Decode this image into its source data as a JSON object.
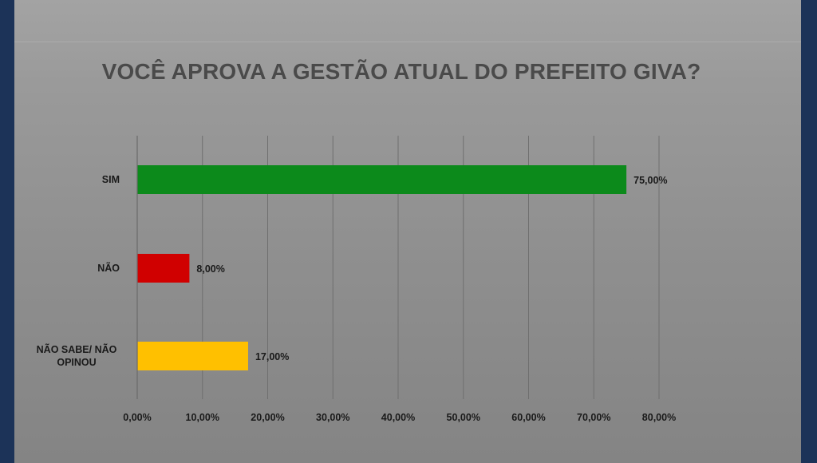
{
  "chart_data": {
    "type": "bar",
    "orientation": "horizontal",
    "title": "VOCÊ APROVA A GESTÃO ATUAL DO PREFEITO GIVA?",
    "categories": [
      "SIM",
      "NÃO",
      "NÃO SABE/ NÃO OPINOU"
    ],
    "category_lines": [
      [
        "SIM"
      ],
      [
        "NÃO"
      ],
      [
        "NÃO SABE/ NÃO",
        "OPINOU"
      ]
    ],
    "values": [
      75,
      8,
      17
    ],
    "data_labels": [
      "75,00%",
      "8,00%",
      "17,00%"
    ],
    "colors": [
      "#0c8a1b",
      "#d00000",
      "#ffc000"
    ],
    "xlim": [
      0,
      80
    ],
    "x_ticks": [
      0,
      10,
      20,
      30,
      40,
      50,
      60,
      70,
      80
    ],
    "x_tick_labels": [
      "0,00%",
      "10,00%",
      "20,00%",
      "30,00%",
      "40,00%",
      "50,00%",
      "60,00%",
      "70,00%",
      "80,00%"
    ],
    "grid": "vertical",
    "legend": "none",
    "xlabel": "",
    "ylabel": ""
  }
}
